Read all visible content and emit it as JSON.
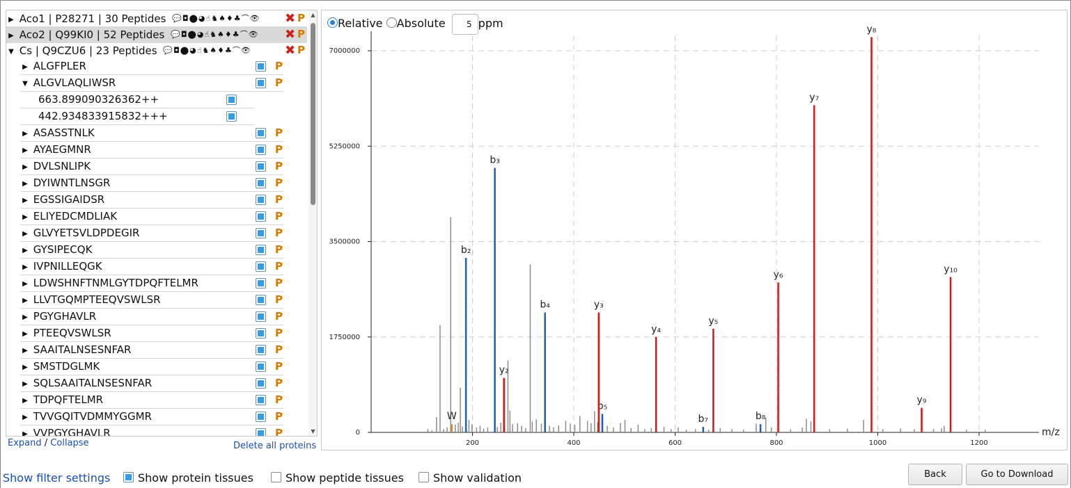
{
  "proteins": [
    {
      "label": "Aco1 | P28271 | 30 Peptides",
      "expanded": false,
      "selected": false
    },
    {
      "label": "Aco2 | Q99KI0 | 52 Peptides",
      "expanded": false,
      "selected": true
    },
    {
      "label": "Cs | Q9CZU6 | 23 Peptides",
      "expanded": true,
      "selected": false
    }
  ],
  "tissue_icons": "💬◘⬤◕☝♞♠♦♣⌒👁",
  "remove_glyph": "✖",
  "p_glyph": "P",
  "peptides": [
    {
      "seq": "ALGFPLER",
      "expanded": false
    },
    {
      "seq": "ALGVLAQLIWSR",
      "expanded": true
    },
    {
      "seq": "ASASSTNLK",
      "expanded": false
    },
    {
      "seq": "AYAEGMNR",
      "expanded": false
    },
    {
      "seq": "DVLSNLIPK",
      "expanded": false
    },
    {
      "seq": "DYIWNTLNSGR",
      "expanded": false
    },
    {
      "seq": "EGSSIGAIDSR",
      "expanded": false
    },
    {
      "seq": "ELIYEDCMDLIAK",
      "expanded": false
    },
    {
      "seq": "GLVYETSVLDPDEGIR",
      "expanded": false
    },
    {
      "seq": "GYSIPECQK",
      "expanded": false
    },
    {
      "seq": "IVPNILLEQGK",
      "expanded": false
    },
    {
      "seq": "LDWSHNFTNMLGYTDPQFTELMR",
      "expanded": false
    },
    {
      "seq": "LLVTGQMPTEEQVSWLSR",
      "expanded": false
    },
    {
      "seq": "PGYGHAVLR",
      "expanded": false
    },
    {
      "seq": "PTEEQVSWLSR",
      "expanded": false
    },
    {
      "seq": "SAAITALNSESNFAR",
      "expanded": false
    },
    {
      "seq": "SMSTDGLMK",
      "expanded": false
    },
    {
      "seq": "SQLSAAITALNSESNFAR",
      "expanded": false
    },
    {
      "seq": "TDPQFTELMR",
      "expanded": false
    },
    {
      "seq": "TVVGQITVDMMYGGMR",
      "expanded": false
    },
    {
      "seq": "VVPGYGHAVLR",
      "expanded": false
    }
  ],
  "precursors": [
    "663.899090326362++",
    "442.934833915832+++"
  ],
  "tree_footer": {
    "expand": "Expand",
    "separator": "/",
    "collapse": "Collapse",
    "delete_all": "Delete all proteins"
  },
  "spectrum_controls": {
    "relative_label": "Relative",
    "absolute_label": "Absolute",
    "tolerance_value": "5",
    "tolerance_unit": "ppm",
    "mode": "relative"
  },
  "bottom": {
    "show_filter": "Show filter settings",
    "show_protein_tissues": "Show protein tissues",
    "show_peptide_tissues": "Show peptide tissues",
    "show_validation": "Show validation",
    "protein_tissues_checked": true,
    "peptide_tissues_checked": false,
    "validation_checked": false,
    "back": "Back",
    "go_download": "Go to Download"
  },
  "colors": {
    "b_ion": "#1b5fa8",
    "y_ion": "#cc1b1b",
    "other": "#8c8c8c",
    "immonium": "#e08a1a"
  },
  "chart_data": {
    "type": "bar",
    "title": "",
    "xlabel": "m/z",
    "ylabel": "",
    "xlim": [
      0,
      1290
    ],
    "ylim": [
      0,
      7200000
    ],
    "x_ticks": [
      200,
      400,
      600,
      800,
      1000,
      1200
    ],
    "y_ticks": [
      0,
      1750000,
      3500000,
      5250000,
      7000000
    ],
    "grid": true,
    "annotated_peaks": [
      {
        "label": "W",
        "ion": "immonium",
        "mz": 159.1,
        "intensity": 150000
      },
      {
        "label": "b₂",
        "ion": "b",
        "mz": 187.1,
        "intensity": 3200000
      },
      {
        "label": "b₃",
        "ion": "b",
        "mz": 244.1,
        "intensity": 4850000
      },
      {
        "label": "b₄",
        "ion": "b",
        "mz": 343.2,
        "intensity": 2200000
      },
      {
        "label": "b₅",
        "ion": "b",
        "mz": 456.3,
        "intensity": 340000
      },
      {
        "label": "b₇",
        "ion": "b",
        "mz": 655.4,
        "intensity": 100000
      },
      {
        "label": "b₈",
        "ion": "b",
        "mz": 768.5,
        "intensity": 150000
      },
      {
        "label": "y₂",
        "ion": "y",
        "mz": 262.1,
        "intensity": 1000000
      },
      {
        "label": "y₃",
        "ion": "y",
        "mz": 449.2,
        "intensity": 2200000
      },
      {
        "label": "y₄",
        "ion": "y",
        "mz": 562.3,
        "intensity": 1750000
      },
      {
        "label": "y₅",
        "ion": "y",
        "mz": 675.4,
        "intensity": 1900000
      },
      {
        "label": "y₆",
        "ion": "y",
        "mz": 803.5,
        "intensity": 2750000
      },
      {
        "label": "y₇",
        "ion": "y",
        "mz": 874.5,
        "intensity": 6000000
      },
      {
        "label": "y₈",
        "ion": "y",
        "mz": 987.6,
        "intensity": 7250000
      },
      {
        "label": "y₉",
        "ion": "y",
        "mz": 1086.6,
        "intensity": 450000
      },
      {
        "label": "y₁₀",
        "ion": "y",
        "mz": 1143.7,
        "intensity": 2850000
      }
    ],
    "unannotated_peaks": [
      {
        "mz": 112,
        "intensity": 60000
      },
      {
        "mz": 120,
        "intensity": 40000
      },
      {
        "mz": 129,
        "intensity": 280000
      },
      {
        "mz": 136,
        "intensity": 1970000
      },
      {
        "mz": 143,
        "intensity": 60000
      },
      {
        "mz": 150,
        "intensity": 90000
      },
      {
        "mz": 157,
        "intensity": 3950000
      },
      {
        "mz": 166,
        "intensity": 140000
      },
      {
        "mz": 172,
        "intensity": 180000
      },
      {
        "mz": 176,
        "intensity": 820000
      },
      {
        "mz": 180,
        "intensity": 110000
      },
      {
        "mz": 193,
        "intensity": 230000
      },
      {
        "mz": 199,
        "intensity": 150000
      },
      {
        "mz": 208,
        "intensity": 90000
      },
      {
        "mz": 215,
        "intensity": 120000
      },
      {
        "mz": 222,
        "intensity": 70000
      },
      {
        "mz": 230,
        "intensity": 90000
      },
      {
        "mz": 249,
        "intensity": 100000
      },
      {
        "mz": 256,
        "intensity": 180000
      },
      {
        "mz": 263,
        "intensity": 120000
      },
      {
        "mz": 270,
        "intensity": 1320000
      },
      {
        "mz": 274,
        "intensity": 400000
      },
      {
        "mz": 279,
        "intensity": 150000
      },
      {
        "mz": 289,
        "intensity": 170000
      },
      {
        "mz": 297,
        "intensity": 120000
      },
      {
        "mz": 305,
        "intensity": 80000
      },
      {
        "mz": 314,
        "intensity": 3080000
      },
      {
        "mz": 318,
        "intensity": 200000
      },
      {
        "mz": 326,
        "intensity": 240000
      },
      {
        "mz": 336,
        "intensity": 160000
      },
      {
        "mz": 352,
        "intensity": 120000
      },
      {
        "mz": 360,
        "intensity": 90000
      },
      {
        "mz": 370,
        "intensity": 130000
      },
      {
        "mz": 384,
        "intensity": 210000
      },
      {
        "mz": 393,
        "intensity": 160000
      },
      {
        "mz": 402,
        "intensity": 140000
      },
      {
        "mz": 412,
        "intensity": 300000
      },
      {
        "mz": 427,
        "intensity": 210000
      },
      {
        "mz": 434,
        "intensity": 170000
      },
      {
        "mz": 441,
        "intensity": 390000
      },
      {
        "mz": 447,
        "intensity": 190000
      },
      {
        "mz": 466,
        "intensity": 120000
      },
      {
        "mz": 478,
        "intensity": 90000
      },
      {
        "mz": 492,
        "intensity": 170000
      },
      {
        "mz": 501,
        "intensity": 230000
      },
      {
        "mz": 513,
        "intensity": 80000
      },
      {
        "mz": 527,
        "intensity": 140000
      },
      {
        "mz": 540,
        "intensity": 60000
      },
      {
        "mz": 553,
        "intensity": 80000
      },
      {
        "mz": 578,
        "intensity": 100000
      },
      {
        "mz": 592,
        "intensity": 60000
      },
      {
        "mz": 606,
        "intensity": 90000
      },
      {
        "mz": 622,
        "intensity": 50000
      },
      {
        "mz": 640,
        "intensity": 60000
      },
      {
        "mz": 666,
        "intensity": 50000
      },
      {
        "mz": 689,
        "intensity": 80000
      },
      {
        "mz": 712,
        "intensity": 60000
      },
      {
        "mz": 735,
        "intensity": 50000
      },
      {
        "mz": 760,
        "intensity": 160000
      },
      {
        "mz": 779,
        "intensity": 270000
      },
      {
        "mz": 790,
        "intensity": 90000
      },
      {
        "mz": 828,
        "intensity": 60000
      },
      {
        "mz": 851,
        "intensity": 90000
      },
      {
        "mz": 859,
        "intensity": 250000
      },
      {
        "mz": 868,
        "intensity": 200000
      },
      {
        "mz": 905,
        "intensity": 60000
      },
      {
        "mz": 940,
        "intensity": 70000
      },
      {
        "mz": 972,
        "intensity": 230000
      },
      {
        "mz": 1010,
        "intensity": 60000
      },
      {
        "mz": 1045,
        "intensity": 70000
      },
      {
        "mz": 1072,
        "intensity": 60000
      },
      {
        "mz": 1110,
        "intensity": 60000
      },
      {
        "mz": 1126,
        "intensity": 80000
      },
      {
        "mz": 1131,
        "intensity": 120000
      },
      {
        "mz": 1175,
        "intensity": 50000
      },
      {
        "mz": 1212,
        "intensity": 50000
      }
    ]
  }
}
